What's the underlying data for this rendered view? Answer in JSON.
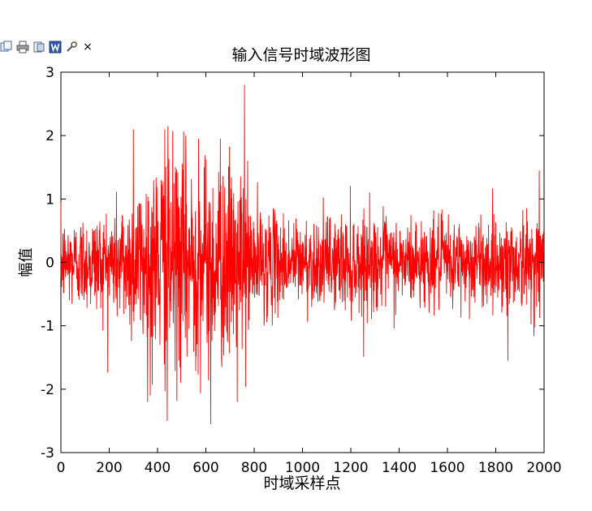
{
  "toolbar": {
    "icons": [
      "copy-icon",
      "print-icon",
      "export-icon",
      "word-icon",
      "tools-icon",
      "close-icon"
    ],
    "close_glyph": "×"
  },
  "chart_data": {
    "type": "line",
    "title": "输入信号时域波形图",
    "xlabel": "时域采样点",
    "ylabel": "幅值",
    "xlim": [
      0,
      2000
    ],
    "ylim": [
      -3,
      3
    ],
    "xticks": [
      0,
      200,
      400,
      600,
      800,
      1000,
      1200,
      1400,
      1600,
      1800,
      2000
    ],
    "yticks": [
      -3,
      -2,
      -1,
      0,
      1,
      2,
      3
    ],
    "xtick_labels": [
      "0",
      "200",
      "400",
      "600",
      "800",
      "1000",
      "1200",
      "1400",
      "1600",
      "1800",
      "2000"
    ],
    "ytick_labels": [
      "-3",
      "-2",
      "-1",
      "0",
      "1",
      "2",
      "3"
    ],
    "grid": false,
    "line_color": "#ff0000",
    "n_points": 2000,
    "series": [
      {
        "envelope_x": [
          0,
          100,
          200,
          300,
          400,
          450,
          500,
          600,
          700,
          760,
          800,
          900,
          1000,
          1100,
          1200,
          1300,
          1400,
          1500,
          1600,
          1700,
          1800,
          1850,
          1900,
          2000
        ],
        "envelope_amp": [
          0.55,
          0.6,
          0.7,
          0.95,
          1.35,
          1.45,
          1.4,
          1.3,
          1.25,
          1.15,
          0.75,
          0.6,
          0.55,
          0.55,
          0.65,
          0.6,
          0.55,
          0.55,
          0.55,
          0.55,
          0.55,
          0.6,
          0.6,
          0.6
        ],
        "peaks": [
          {
            "x": 760,
            "y": 2.8
          },
          {
            "x": 300,
            "y": 2.1
          },
          {
            "x": 430,
            "y": 2.1
          },
          {
            "x": 570,
            "y": 1.95
          },
          {
            "x": 660,
            "y": 1.95
          },
          {
            "x": 620,
            "y": -2.55
          },
          {
            "x": 440,
            "y": -2.5
          },
          {
            "x": 370,
            "y": -2.1
          },
          {
            "x": 730,
            "y": -2.2
          },
          {
            "x": 1850,
            "y": -1.55
          },
          {
            "x": 1980,
            "y": 1.45
          }
        ]
      }
    ]
  }
}
